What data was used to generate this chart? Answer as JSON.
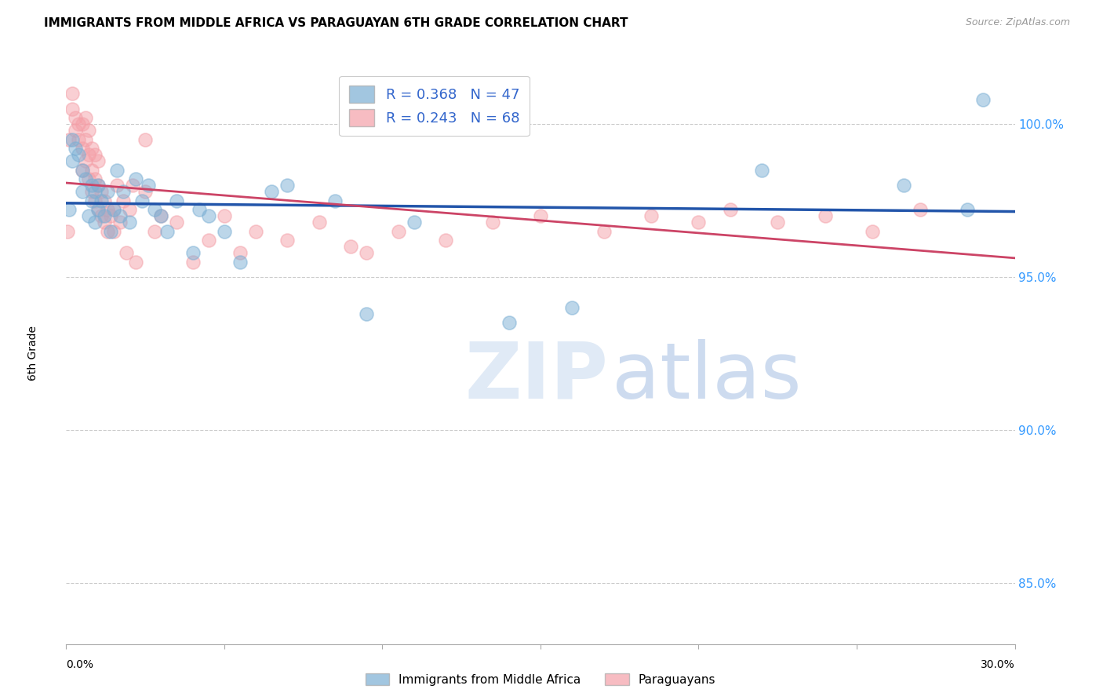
{
  "title": "IMMIGRANTS FROM MIDDLE AFRICA VS PARAGUAYAN 6TH GRADE CORRELATION CHART",
  "source": "Source: ZipAtlas.com",
  "ylabel": "6th Grade",
  "legend_label_blue": "Immigrants from Middle Africa",
  "legend_label_pink": "Paraguayans",
  "blue_R": 0.368,
  "blue_N": 47,
  "pink_R": 0.243,
  "pink_N": 68,
  "blue_color": "#7BAFD4",
  "pink_color": "#F4A0A8",
  "blue_line_color": "#2255AA",
  "pink_line_color": "#CC4466",
  "xlim": [
    0.0,
    30.0
  ],
  "ylim": [
    83.0,
    102.0
  ],
  "y_ticks": [
    85.0,
    90.0,
    95.0,
    100.0
  ],
  "y_tick_labels": [
    "85.0%",
    "90.0%",
    "95.0%",
    "100.0%"
  ],
  "blue_points_x": [
    0.1,
    0.2,
    0.2,
    0.3,
    0.4,
    0.5,
    0.5,
    0.6,
    0.7,
    0.8,
    0.8,
    0.9,
    0.9,
    1.0,
    1.0,
    1.1,
    1.2,
    1.3,
    1.4,
    1.5,
    1.6,
    1.7,
    1.8,
    2.0,
    2.2,
    2.4,
    2.6,
    2.8,
    3.0,
    3.2,
    3.5,
    4.0,
    4.2,
    4.5,
    5.0,
    5.5,
    6.5,
    7.0,
    8.5,
    9.5,
    11.0,
    14.0,
    16.0,
    22.0,
    26.5,
    28.5,
    29.0
  ],
  "blue_points_y": [
    97.2,
    98.8,
    99.5,
    99.2,
    99.0,
    97.8,
    98.5,
    98.2,
    97.0,
    97.5,
    98.0,
    96.8,
    97.8,
    97.2,
    98.0,
    97.5,
    97.0,
    97.8,
    96.5,
    97.2,
    98.5,
    97.0,
    97.8,
    96.8,
    98.2,
    97.5,
    98.0,
    97.2,
    97.0,
    96.5,
    97.5,
    95.8,
    97.2,
    97.0,
    96.5,
    95.5,
    97.8,
    98.0,
    97.5,
    93.8,
    96.8,
    93.5,
    94.0,
    98.5,
    98.0,
    97.2,
    100.8
  ],
  "pink_points_x": [
    0.05,
    0.1,
    0.2,
    0.2,
    0.3,
    0.3,
    0.4,
    0.4,
    0.5,
    0.5,
    0.5,
    0.6,
    0.6,
    0.6,
    0.7,
    0.7,
    0.7,
    0.8,
    0.8,
    0.8,
    0.9,
    0.9,
    0.9,
    1.0,
    1.0,
    1.0,
    1.1,
    1.1,
    1.2,
    1.2,
    1.3,
    1.3,
    1.4,
    1.5,
    1.5,
    1.6,
    1.7,
    1.8,
    1.9,
    2.0,
    2.1,
    2.2,
    2.5,
    2.5,
    2.8,
    3.0,
    3.5,
    4.0,
    4.5,
    5.0,
    5.5,
    6.0,
    7.0,
    8.0,
    9.0,
    9.5,
    10.5,
    12.0,
    13.5,
    15.0,
    17.0,
    18.5,
    20.0,
    21.0,
    22.5,
    24.0,
    25.5,
    27.0
  ],
  "pink_points_y": [
    96.5,
    99.5,
    100.5,
    101.0,
    99.8,
    100.2,
    99.5,
    100.0,
    98.5,
    99.2,
    100.0,
    98.8,
    99.5,
    100.2,
    98.2,
    99.0,
    99.8,
    97.8,
    98.5,
    99.2,
    97.5,
    98.2,
    99.0,
    97.2,
    98.0,
    98.8,
    97.0,
    97.8,
    96.8,
    97.5,
    96.5,
    97.2,
    97.0,
    96.5,
    97.2,
    98.0,
    96.8,
    97.5,
    95.8,
    97.2,
    98.0,
    95.5,
    97.8,
    99.5,
    96.5,
    97.0,
    96.8,
    95.5,
    96.2,
    97.0,
    95.8,
    96.5,
    96.2,
    96.8,
    96.0,
    95.8,
    96.5,
    96.2,
    96.8,
    97.0,
    96.5,
    97.0,
    96.8,
    97.2,
    96.8,
    97.0,
    96.5,
    97.2
  ]
}
